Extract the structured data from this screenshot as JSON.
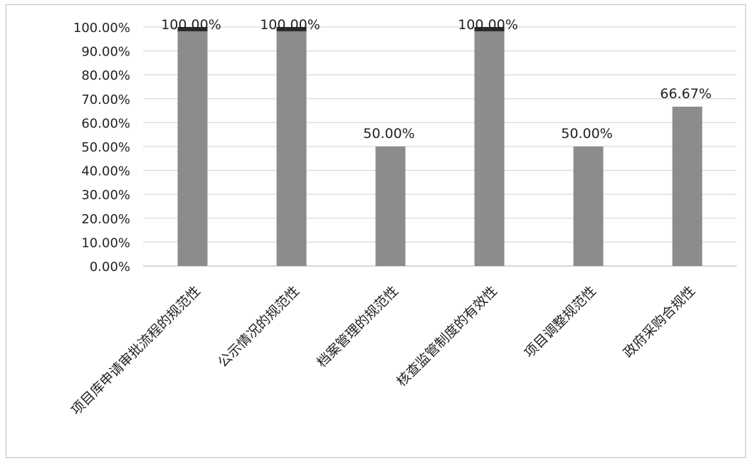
{
  "chart_data": {
    "type": "bar",
    "categories": [
      "项目库申请审批流程的规范性",
      "公示情况的规范性",
      "档案管理的规范性",
      "核查监管制度的有效性",
      "项目调整规范性",
      "政府采购合规性"
    ],
    "values": [
      100.0,
      100.0,
      50.0,
      100.0,
      50.0,
      66.67
    ],
    "data_labels": [
      "100.00%",
      "100.00%",
      "50.00%",
      "100.00%",
      "50.00%",
      "66.67%"
    ],
    "ylim": [
      0,
      100
    ],
    "yticks": [
      0,
      10,
      20,
      30,
      40,
      50,
      60,
      70,
      80,
      90,
      100
    ],
    "ytick_labels": [
      "0.00%",
      "10.00%",
      "20.00%",
      "30.00%",
      "40.00%",
      "50.00%",
      "60.00%",
      "70.00%",
      "80.00%",
      "90.00%",
      "100.00%"
    ],
    "grid": true,
    "title": "",
    "xlabel": "",
    "ylabel": "",
    "bar_color": "#8c8c8c",
    "bar_top_color": "#2b2b2b",
    "grid_color": "#d9d9d9"
  }
}
